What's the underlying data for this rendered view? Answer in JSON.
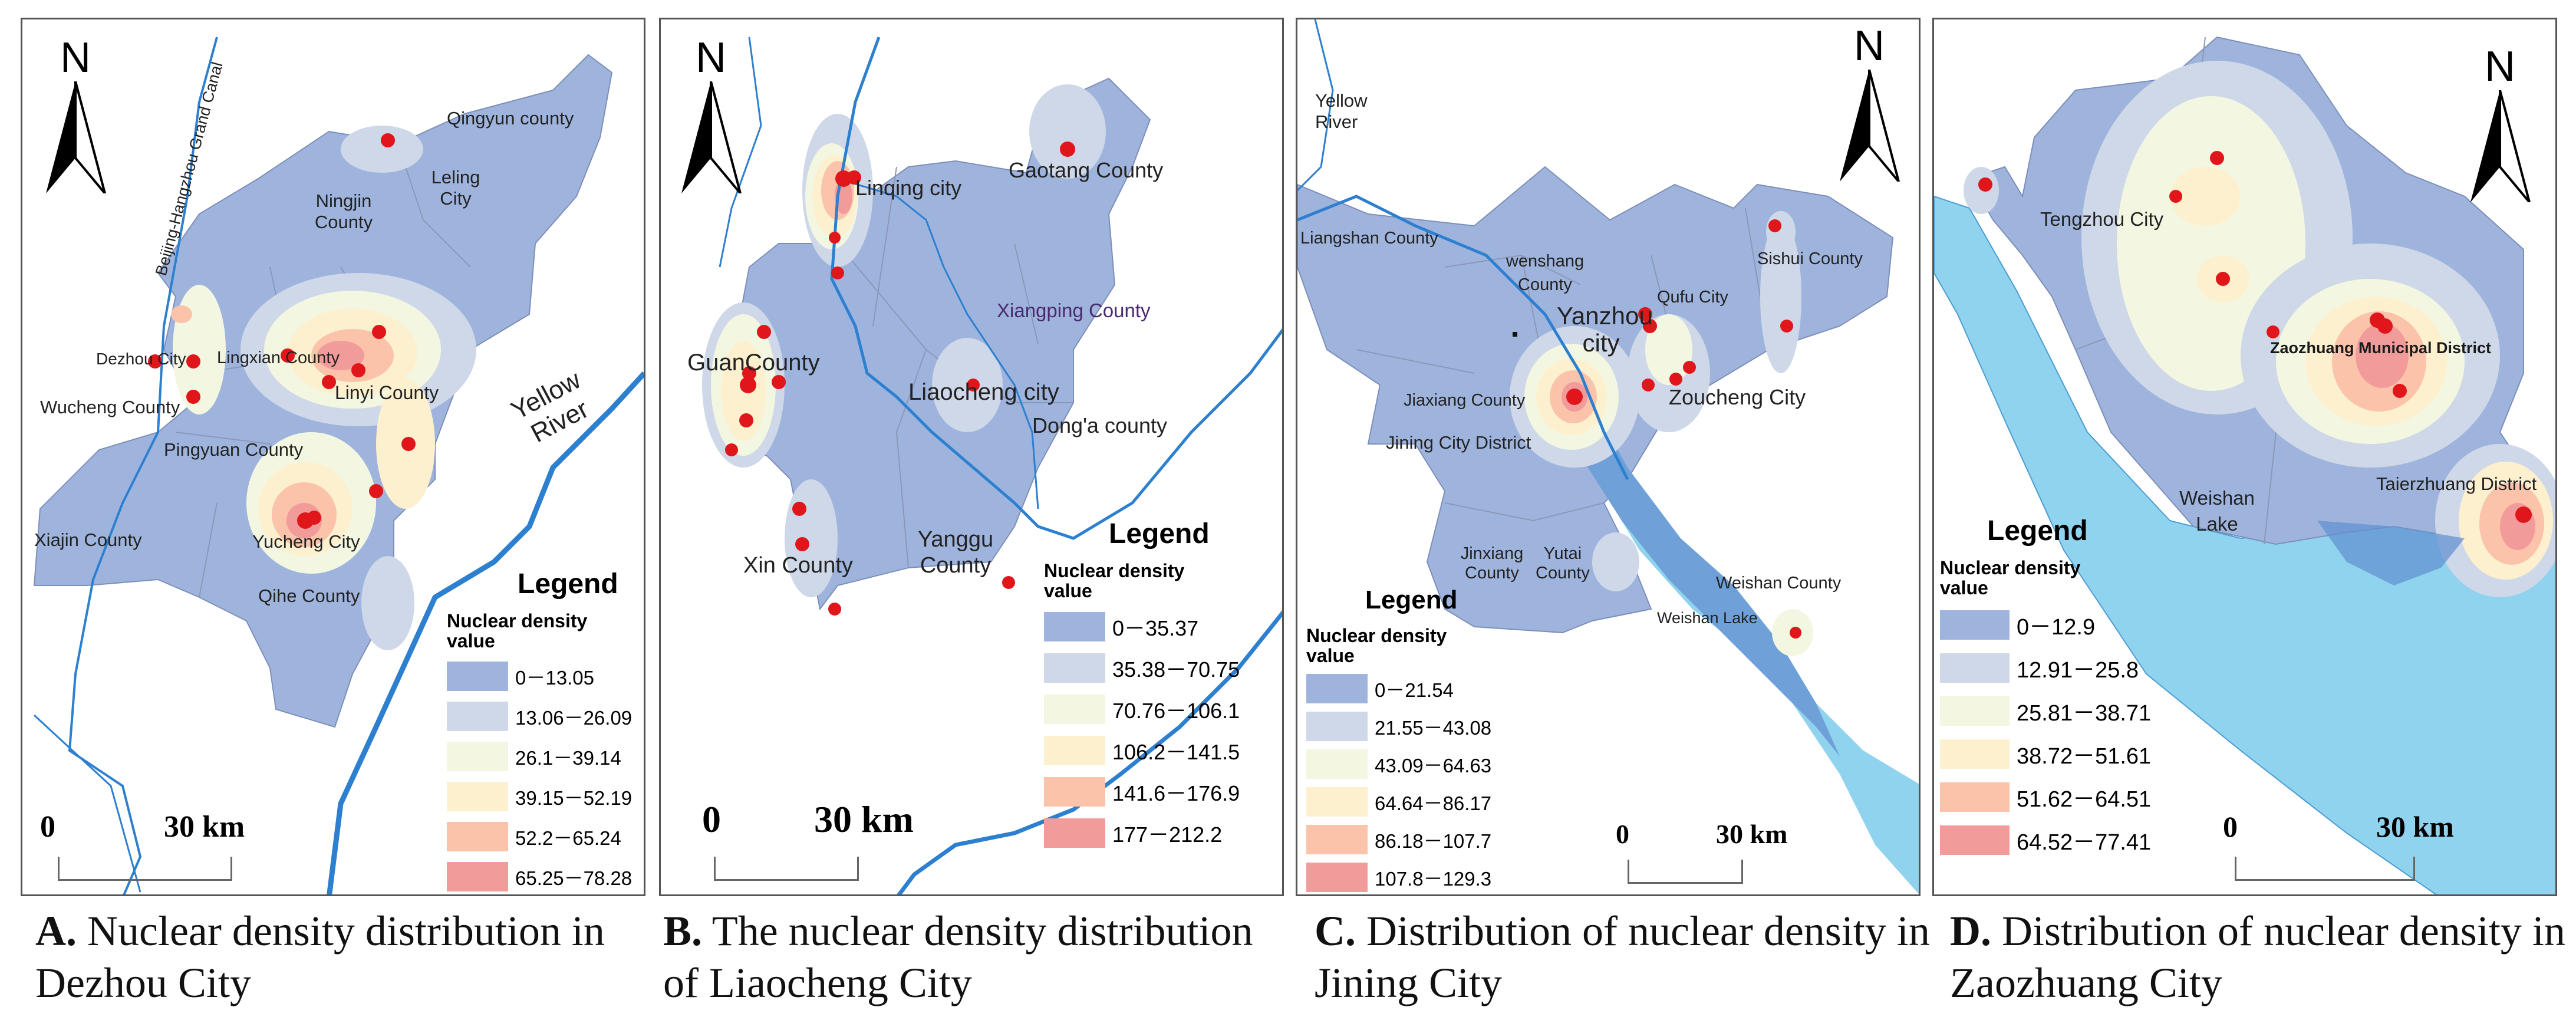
{
  "panels": [
    {
      "id": "A",
      "caption_letter": "A.",
      "caption_text": "Nuclear density distribution in Dezhou City",
      "north": "N",
      "legend_title": "Legend",
      "legend_subtitle": "Nuclear density value",
      "legend_items": [
        "0－13.05",
        "13.06－26.09",
        "26.1－39.14",
        "39.15－52.19",
        "52.2－65.24",
        "65.25－78.28"
      ],
      "scale_zero": "0",
      "scale_km": "30 km",
      "labels": {
        "canal": "Beijing-Hangzhou Grand Canal",
        "river": "Yellow River",
        "qingyun": "Qingyun county",
        "leling": "Leling City",
        "ningjin": "Ningjin County",
        "dezhou": "Dezhou City",
        "lingxian": "Lingxian County",
        "linyi": "Linyi County",
        "wucheng": "Wucheng County",
        "pingyuan": "Pingyuan County",
        "xiajin": "Xiajin County",
        "yucheng": "Yucheng City",
        "qihe": "Qihe County"
      }
    },
    {
      "id": "B",
      "caption_letter": "B.",
      "caption_text": "The nuclear density distribution of Liaocheng City",
      "north": "N",
      "legend_title": "Legend",
      "legend_subtitle": "Nuclear density value",
      "legend_items": [
        "0－35.37",
        "35.38－70.75",
        "70.76－106.1",
        "106.2－141.5",
        "141.6－176.9",
        "177－212.2"
      ],
      "scale_zero": "0",
      "scale_km": "30 km",
      "labels": {
        "linqing": "Linqing  city",
        "gaotang": "Gaotang County",
        "xiangping": "Xiangping County",
        "guan": "GuanCounty",
        "liaocheng": "Liaocheng city",
        "donga": "Dong'a county",
        "xin": "Xin County",
        "yanggu": "Yanggu County"
      }
    },
    {
      "id": "C",
      "caption_letter": "C.",
      "caption_text": "Distribution of nuclear density in Jining City",
      "north": "N",
      "legend_title": "Legend",
      "legend_subtitle": "Nuclear density value",
      "legend_items": [
        "0－21.54",
        "21.55－43.08",
        "43.09－64.63",
        "64.64－86.17",
        "86.18－107.7",
        "107.8－129.3"
      ],
      "scale_zero": "0",
      "scale_km": "30 km",
      "labels": {
        "river": "Yellow River",
        "liangshan": "Liangshan County",
        "wenshang": "wenshang County",
        "sishui": "Sishui County",
        "yanzhou": "Yanzhou city",
        "qufu": "Qufu City",
        "jiaxiang": "Jiaxiang County",
        "zoucheng": "Zoucheng City",
        "jiningdist": "Jining City District",
        "jinxiang": "Jinxiang County",
        "yutai": "Yutai County",
        "weishan": "Weishan County",
        "weishanlake": "Weishan Lake"
      }
    },
    {
      "id": "D",
      "caption_letter": "D.",
      "caption_text": "Distribution of nuclear density in Zaozhuang City",
      "north": "N",
      "legend_title": "Legend",
      "legend_subtitle": "Nuclear density value",
      "legend_items": [
        "0－12.9",
        "12.91－25.8",
        "25.81－38.71",
        "38.72－51.61",
        "51.62－64.51",
        "64.52－77.41"
      ],
      "scale_zero": "0",
      "scale_km": "30 km",
      "labels": {
        "tengzhou": "Tengzhou City",
        "municipal": "Zaozhuang Municipal District",
        "weishanlake": "Weishan Lake",
        "taierzhuang": "Taierzhuang District"
      }
    }
  ],
  "colors": {
    "class1": "#9fb4dd",
    "class2": "#cfd8e8",
    "class3": "#f3f7e2",
    "class4": "#fdf0cf",
    "class5": "#fbc3aa",
    "class6": "#f29b9b",
    "river": "#2d7fd0",
    "lake": "#8fd3ee",
    "point": "#e0161a"
  },
  "icons": {
    "north": "north-arrow-icon"
  }
}
